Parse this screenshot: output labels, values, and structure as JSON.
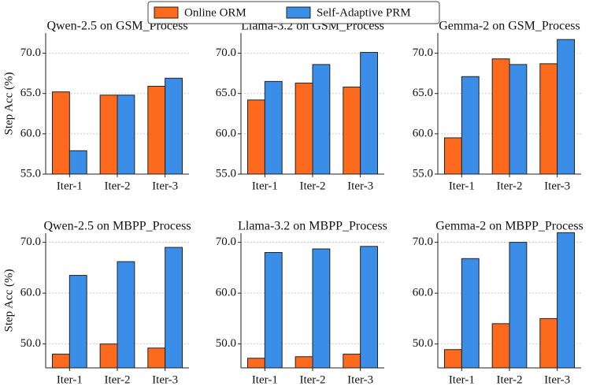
{
  "chart_data": [
    {
      "type": "bar",
      "title": "Qwen-2.5 on GSM_Process",
      "ylabel": "Step Acc (%)",
      "categories": [
        "Iter-1",
        "Iter-2",
        "Iter-3"
      ],
      "series": [
        {
          "name": "Online ORM",
          "color": "#fe6a1d",
          "values": [
            65.2,
            64.8,
            65.9
          ]
        },
        {
          "name": "Self-Adaptive PRM",
          "color": "#3b8ee8",
          "values": [
            57.9,
            64.8,
            66.9
          ]
        }
      ],
      "ylim": [
        55,
        72.5
      ],
      "yticks": [
        {
          "value": 55,
          "label": "55.0"
        },
        {
          "value": 60,
          "label": "60.0"
        },
        {
          "value": 65,
          "label": "65.0"
        },
        {
          "value": 70,
          "label": "70.0"
        }
      ],
      "grid": true
    },
    {
      "type": "bar",
      "title": "Llama-3.2 on GSM_Process",
      "categories": [
        "Iter-1",
        "Iter-2",
        "Iter-3"
      ],
      "series": [
        {
          "name": "Online ORM",
          "color": "#fe6a1d",
          "values": [
            64.2,
            66.3,
            65.8
          ]
        },
        {
          "name": "Self-Adaptive PRM",
          "color": "#3b8ee8",
          "values": [
            66.5,
            68.6,
            70.1
          ]
        }
      ],
      "ylim": [
        55,
        72.5
      ],
      "yticks": [
        {
          "value": 55,
          "label": "55.0"
        },
        {
          "value": 60,
          "label": "60.0"
        },
        {
          "value": 65,
          "label": "65.0"
        },
        {
          "value": 70,
          "label": "70.0"
        }
      ],
      "grid": true
    },
    {
      "type": "bar",
      "title": "Gemma-2 on GSM_Process",
      "categories": [
        "Iter-1",
        "Iter-2",
        "Iter-3"
      ],
      "series": [
        {
          "name": "Online ORM",
          "color": "#fe6a1d",
          "values": [
            59.5,
            69.3,
            68.7
          ]
        },
        {
          "name": "Self-Adaptive PRM",
          "color": "#3b8ee8",
          "values": [
            67.1,
            68.6,
            71.7
          ]
        }
      ],
      "ylim": [
        55,
        72.5
      ],
      "yticks": [
        {
          "value": 55,
          "label": "55.0"
        },
        {
          "value": 60,
          "label": "60.0"
        },
        {
          "value": 65,
          "label": "65.0"
        },
        {
          "value": 70,
          "label": "70.0"
        }
      ],
      "grid": true
    },
    {
      "type": "bar",
      "title": "Qwen-2.5 on MBPP_Process",
      "ylabel": "Step Acc (%)",
      "categories": [
        "Iter-1",
        "Iter-2",
        "Iter-3"
      ],
      "series": [
        {
          "name": "Online ORM",
          "color": "#fe6a1d",
          "values": [
            48.0,
            50.0,
            49.2
          ]
        },
        {
          "name": "Self-Adaptive PRM",
          "color": "#3b8ee8",
          "values": [
            63.5,
            66.2,
            69.0
          ]
        }
      ],
      "ylim": [
        45.3,
        71.8
      ],
      "yticks": [
        {
          "value": 50,
          "label": "50.0"
        },
        {
          "value": 60,
          "label": "60.0"
        },
        {
          "value": 70,
          "label": "70.0"
        }
      ],
      "grid": true
    },
    {
      "type": "bar",
      "title": "Llama-3.2 on MBPP_Process",
      "categories": [
        "Iter-1",
        "Iter-2",
        "Iter-3"
      ],
      "series": [
        {
          "name": "Online ORM",
          "color": "#fe6a1d",
          "values": [
            47.2,
            47.5,
            48.0
          ]
        },
        {
          "name": "Self-Adaptive PRM",
          "color": "#3b8ee8",
          "values": [
            68.0,
            68.7,
            69.2
          ]
        }
      ],
      "ylim": [
        45.3,
        71.8
      ],
      "yticks": [
        {
          "value": 50,
          "label": "50.0"
        },
        {
          "value": 60,
          "label": "60.0"
        },
        {
          "value": 70,
          "label": "70.0"
        }
      ],
      "grid": true
    },
    {
      "type": "bar",
      "title": "Gemma-2 on MBPP_Process",
      "categories": [
        "Iter-1",
        "Iter-2",
        "Iter-3"
      ],
      "series": [
        {
          "name": "Online ORM",
          "color": "#fe6a1d",
          "values": [
            48.9,
            54.0,
            55.0
          ]
        },
        {
          "name": "Self-Adaptive PRM",
          "color": "#3b8ee8",
          "values": [
            66.8,
            70.0,
            71.9
          ]
        }
      ],
      "ylim": [
        45.3,
        71.8
      ],
      "yticks": [
        {
          "value": 50,
          "label": "50.0"
        },
        {
          "value": 60,
          "label": "60.0"
        },
        {
          "value": 70,
          "label": "70.0"
        }
      ],
      "grid": true
    }
  ]
}
